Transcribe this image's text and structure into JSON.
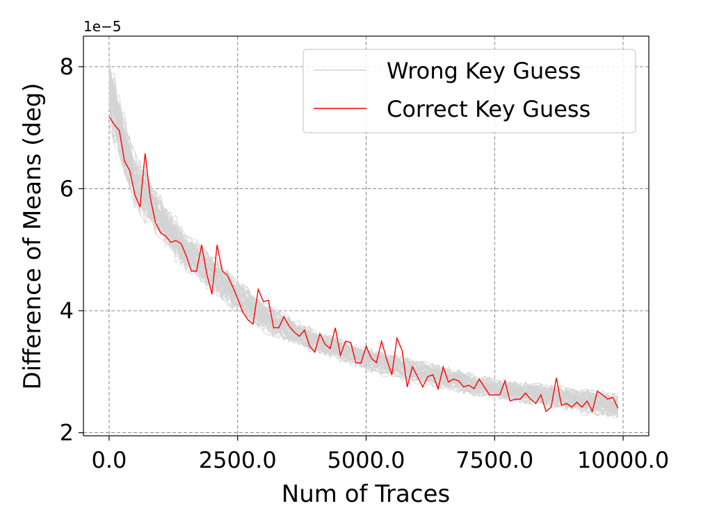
{
  "chart_data": {
    "type": "line",
    "title": "",
    "xlabel": "Num of Traces",
    "ylabel": "Difference of Means (deg)",
    "y_offset_label": "1e−5",
    "xlim": [
      -500,
      10500
    ],
    "ylim": [
      1.95,
      8.5
    ],
    "xticks": [
      0,
      2500,
      5000,
      7500,
      10000
    ],
    "xtick_labels": [
      "0.0",
      "2500.0",
      "5000.0",
      "7500.0",
      "10000.0"
    ],
    "yticks": [
      2,
      4,
      6,
      8
    ],
    "ytick_labels": [
      "2",
      "4",
      "6",
      "8"
    ],
    "grid": true,
    "legend_position": "top-right",
    "wrong_key_band": {
      "name": "Wrong Key Guess",
      "color": "#d3d3d3",
      "x": [
        0,
        500,
        1000,
        1500,
        2000,
        2500,
        3000,
        3500,
        4000,
        4500,
        5000,
        5500,
        6000,
        6500,
        7000,
        7500,
        8000,
        8500,
        9000,
        9500,
        9900
      ],
      "lower": [
        7.1,
        5.75,
        5.2,
        4.7,
        4.35,
        4.0,
        3.7,
        3.5,
        3.35,
        3.2,
        3.05,
        2.95,
        2.85,
        2.75,
        2.65,
        2.6,
        2.5,
        2.45,
        2.4,
        2.3,
        2.25
      ],
      "upper": [
        8.0,
        6.5,
        5.8,
        5.2,
        4.85,
        4.45,
        4.1,
        3.85,
        3.65,
        3.5,
        3.35,
        3.25,
        3.15,
        3.05,
        2.95,
        2.85,
        2.8,
        2.75,
        2.7,
        2.65,
        2.6
      ],
      "count": 60
    },
    "series": [
      {
        "name": "Correct Key Guess",
        "color": "#ff0000",
        "x": [
          0,
          100,
          200,
          300,
          400,
          500,
          600,
          700,
          800,
          900,
          1000,
          1100,
          1200,
          1300,
          1400,
          1500,
          1600,
          1700,
          1800,
          1900,
          2000,
          2100,
          2200,
          2300,
          2400,
          2500,
          2600,
          2700,
          2800,
          2900,
          3000,
          3100,
          3200,
          3300,
          3400,
          3500,
          3600,
          3700,
          3800,
          3900,
          4000,
          4100,
          4200,
          4300,
          4400,
          4500,
          4600,
          4700,
          4800,
          4900,
          5000,
          5100,
          5200,
          5300,
          5400,
          5500,
          5600,
          5700,
          5800,
          5900,
          6000,
          6100,
          6200,
          6300,
          6400,
          6500,
          6600,
          6700,
          6800,
          6900,
          7000,
          7100,
          7200,
          7300,
          7400,
          7500,
          7600,
          7700,
          7800,
          7900,
          8000,
          8100,
          8200,
          8300,
          8400,
          8500,
          8600,
          8700,
          8800,
          8900,
          9000,
          9100,
          9200,
          9300,
          9400,
          9500,
          9600,
          9700,
          9800,
          9900
        ],
        "values": [
          7.18,
          7.05,
          6.95,
          6.45,
          6.3,
          5.9,
          5.7,
          6.58,
          5.85,
          5.45,
          5.28,
          5.22,
          5.12,
          5.15,
          5.1,
          4.9,
          4.65,
          4.65,
          5.08,
          4.6,
          4.27,
          5.08,
          4.65,
          4.58,
          4.4,
          4.2,
          3.98,
          3.85,
          3.78,
          4.35,
          4.15,
          4.17,
          3.72,
          3.72,
          3.9,
          3.75,
          3.65,
          3.58,
          3.68,
          3.42,
          3.32,
          3.62,
          3.45,
          3.38,
          3.72,
          3.27,
          3.5,
          3.48,
          3.15,
          3.14,
          3.42,
          3.22,
          3.15,
          3.5,
          3.2,
          2.95,
          3.55,
          3.35,
          2.75,
          3.08,
          2.92,
          2.75,
          2.92,
          2.95,
          2.72,
          3.08,
          2.83,
          2.88,
          2.85,
          2.75,
          2.78,
          2.72,
          2.88,
          2.75,
          2.62,
          2.62,
          2.62,
          2.85,
          2.52,
          2.55,
          2.55,
          2.65,
          2.55,
          2.48,
          2.62,
          2.35,
          2.42,
          2.9,
          2.45,
          2.48,
          2.42,
          2.5,
          2.42,
          2.52,
          2.35,
          2.68,
          2.62,
          2.55,
          2.58,
          2.4
        ]
      }
    ]
  }
}
